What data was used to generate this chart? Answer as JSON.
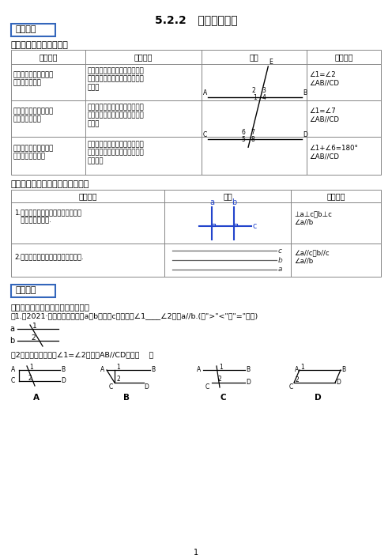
{
  "title": "5.2.2   平行线的判定",
  "bg_color": "#ffffff",
  "section1_label": "知识梳理",
  "section2_label": "精讲精练",
  "knowledge1_title": "知识点一、平行线的判定",
  "knowledge2_title": "知识点二、平行线判定方法的推论",
  "table1_headers": [
    "判定方法",
    "文字语言",
    "图示",
    "符号语言"
  ],
  "row1_method": "判定方法１：同位角相\n等，两直线平行",
  "row1_text": "两条直线被第三条直线所截，如\n果同位角相等，那么这两条直线\n平行。",
  "row1_sym": "∠1=∠2\n∠AB//CD",
  "row2_method": "判定方法２：内错角相\n等，两直线平行",
  "row2_text": "两条直线被第三条直线所截，如\n果内错角相等，那么这两条直线\n平行。",
  "row2_sym": "∠1=∠7\n∠AB//CD",
  "row3_method": "判定方法３：同旁内角\n互补，两直线平行",
  "row3_text": "两条直线被第三条直线所截，如\n果同旁内角互补，那么这两条直\n线平行。",
  "row3_sym": "∠1+∠6=180°\n∠AB//CD",
  "table2_headers": [
    "文字语言",
    "图示",
    "符号语言"
  ],
  "t2r1_text": "1.在同一平面内，垂直于同一条直线\n   的两条直线平行.",
  "t2r1_sym": "⊥a⊥c，b⊥c\n∠a//b",
  "t2r2_text": "2.平行于同一条直线的两条直线平行.",
  "t2r2_sym": "∠a//c，b//c\n∠a//b",
  "practice_title": "考点一、灵活运用平行线的判定方法",
  "example1_prefix": "例1.》2021·桂林《如图，直线a、b被直线c所截，当∠1",
  "example1_blank": "____",
  "example1_suffix": "∠2时，a//b.(用\">\"<\"或\"=\"填空)",
  "example2": "例2．下列图形中，由∠1=∠2能得到AB//CD的是（    ）"
}
